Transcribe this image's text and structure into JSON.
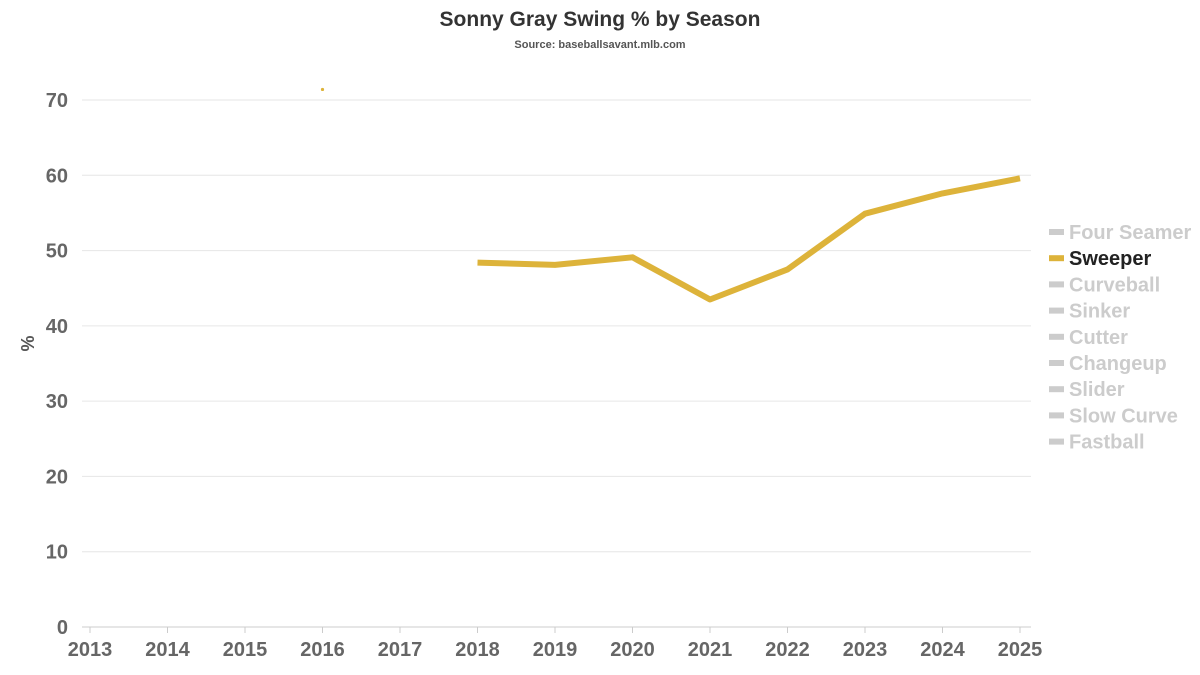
{
  "chart_data": {
    "type": "line",
    "title": "Sonny Gray Swing % by Season",
    "subtitle": "Source: baseballsavant.mlb.com",
    "xlabel": "",
    "ylabel": "%",
    "xlim": [
      2013,
      2025
    ],
    "ylim": [
      0,
      70
    ],
    "x_ticks": [
      "2013",
      "2014",
      "2015",
      "2016",
      "2017",
      "2018",
      "2019",
      "2020",
      "2021",
      "2022",
      "2023",
      "2024",
      "2025"
    ],
    "y_ticks": [
      "0",
      "10",
      "20",
      "30",
      "40",
      "50",
      "60",
      "70"
    ],
    "grid": true,
    "legend_position": "right",
    "highlight_color": "#DDB33A",
    "muted_color": "#CCCCCC",
    "series": [
      {
        "name": "Four Seamer",
        "highlighted": false,
        "points": []
      },
      {
        "name": "Sweeper",
        "highlighted": true,
        "points": [
          {
            "x": 2016,
            "y": 71.4
          },
          {
            "x": 2018,
            "y": 48.4
          },
          {
            "x": 2019,
            "y": 48.1
          },
          {
            "x": 2020,
            "y": 49.1
          },
          {
            "x": 2021,
            "y": 43.5
          },
          {
            "x": 2022,
            "y": 47.5
          },
          {
            "x": 2023,
            "y": 54.9
          },
          {
            "x": 2024,
            "y": 57.6
          },
          {
            "x": 2025,
            "y": 59.6
          }
        ]
      },
      {
        "name": "Curveball",
        "highlighted": false,
        "points": []
      },
      {
        "name": "Sinker",
        "highlighted": false,
        "points": []
      },
      {
        "name": "Cutter",
        "highlighted": false,
        "points": []
      },
      {
        "name": "Changeup",
        "highlighted": false,
        "points": []
      },
      {
        "name": "Slider",
        "highlighted": false,
        "points": []
      },
      {
        "name": "Slow Curve",
        "highlighted": false,
        "points": []
      },
      {
        "name": "Fastball",
        "highlighted": false,
        "points": []
      }
    ]
  }
}
